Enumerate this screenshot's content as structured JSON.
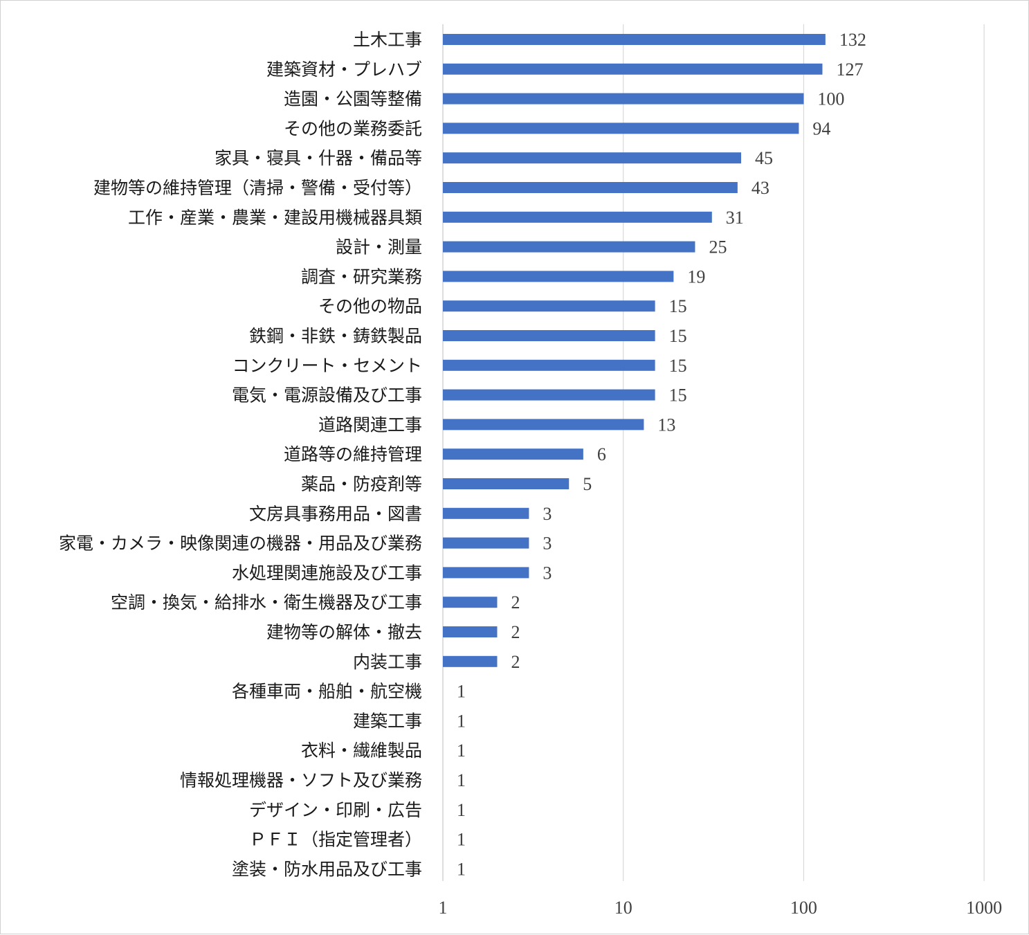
{
  "chart_data": {
    "type": "bar",
    "orientation": "horizontal",
    "x_scale": "log",
    "xlim": [
      1,
      1000
    ],
    "x_ticks": [
      "1",
      "10",
      "100",
      "1000"
    ],
    "grid": "vertical",
    "bar_color": "#4472C4",
    "categories": [
      "土木工事",
      "建築資材・プレハブ",
      "造園・公園等整備",
      "その他の業務委託",
      "家具・寝具・什器・備品等",
      "建物等の維持管理（清掃・警備・受付等）",
      "工作・産業・農業・建設用機械器具類",
      "設計・測量",
      "調査・研究業務",
      "その他の物品",
      "鉄鋼・非鉄・鋳鉄製品",
      "コンクリート・セメント",
      "電気・電源設備及び工事",
      "道路関連工事",
      "道路等の維持管理",
      "薬品・防疫剤等",
      "文房具事務用品・図書",
      "家電・カメラ・映像関連の機器・用品及び業務",
      "水処理関連施設及び工事",
      "空調・換気・給排水・衛生機器及び工事",
      "建物等の解体・撤去",
      "内装工事",
      "各種車両・船舶・航空機",
      "建築工事",
      "衣料・繊維製品",
      "情報処理機器・ソフト及び業務",
      "デザイン・印刷・広告",
      "ＰＦＩ（指定管理者）",
      "塗装・防水用品及び工事"
    ],
    "values": [
      132,
      127,
      100,
      94,
      45,
      43,
      31,
      25,
      19,
      15,
      15,
      15,
      15,
      13,
      6,
      5,
      3,
      3,
      3,
      2,
      2,
      2,
      1,
      1,
      1,
      1,
      1,
      1,
      1
    ]
  }
}
